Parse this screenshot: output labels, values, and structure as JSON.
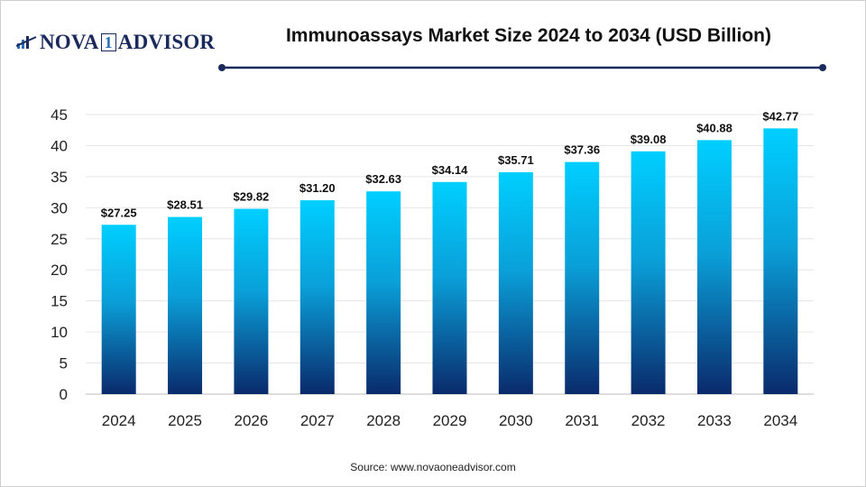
{
  "logo": {
    "text_left": "NOVA",
    "text_mid": "1",
    "text_right": "ADVISOR",
    "color": "#1b2a5c"
  },
  "title": "Immunoassays Market Size 2024 to 2034 (USD Billion)",
  "source": "Source: www.novaoneadvisor.com",
  "chart_data": {
    "type": "bar",
    "title": "Immunoassays Market Size 2024 to 2034 (USD Billion)",
    "xlabel": "",
    "ylabel": "",
    "categories": [
      "2024",
      "2025",
      "2026",
      "2027",
      "2028",
      "2029",
      "2030",
      "2031",
      "2032",
      "2033",
      "2034"
    ],
    "values": [
      27.25,
      28.51,
      29.82,
      31.2,
      32.63,
      34.14,
      35.71,
      37.36,
      39.08,
      40.88,
      42.77
    ],
    "data_labels": [
      "$27.25",
      "$28.51",
      "$29.82",
      "$31.20",
      "$32.63",
      "$34.14",
      "$35.71",
      "$37.36",
      "$39.08",
      "$40.88",
      "$42.77"
    ],
    "ylim": [
      0,
      45
    ],
    "yticks": [
      0,
      5,
      10,
      15,
      20,
      25,
      30,
      35,
      40,
      45
    ],
    "grid": true,
    "legend": "none",
    "colors": {
      "bar_top": "#00cfff",
      "bar_bottom": "#0a2a6b",
      "accent_line": "#1b2a5c"
    }
  }
}
